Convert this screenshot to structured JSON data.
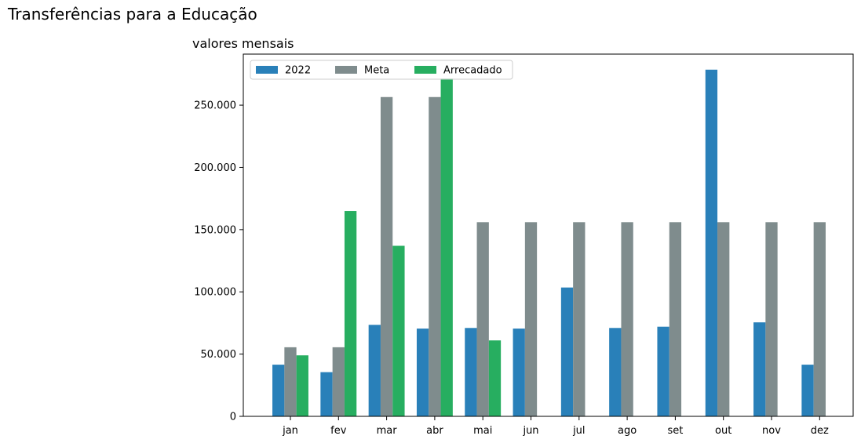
{
  "figure": {
    "suptitle": "Transferências para a Educação",
    "subtitle": "valores mensais"
  },
  "chart_data": {
    "type": "bar",
    "title": "valores mensais",
    "xlabel": "",
    "ylabel": "",
    "categories": [
      "jan",
      "fev",
      "mar",
      "abr",
      "mai",
      "jun",
      "jul",
      "ago",
      "set",
      "out",
      "nov",
      "dez"
    ],
    "series": [
      {
        "name": "2022",
        "color": "#2980b9",
        "values": [
          41500,
          35500,
          73500,
          70500,
          71000,
          70500,
          103500,
          71000,
          72000,
          278500,
          75500,
          41500
        ]
      },
      {
        "name": "Meta",
        "color": "#7f8c8d",
        "values": [
          55500,
          55500,
          256500,
          256500,
          156000,
          156000,
          156000,
          156000,
          156000,
          156000,
          156000,
          156000
        ]
      },
      {
        "name": "Arrecadado",
        "color": "#27ae60",
        "values": [
          49000,
          165000,
          137000,
          271500,
          61000,
          null,
          null,
          null,
          null,
          null,
          null,
          null
        ]
      }
    ],
    "ylim": [
      0,
      291000
    ],
    "yticks": [
      0,
      50000,
      100000,
      150000,
      200000,
      250000
    ],
    "ytick_labels": [
      "0",
      "50.000",
      "100.000",
      "150.000",
      "200.000",
      "250.000"
    ],
    "legend": {
      "position": "upper-left",
      "ncol": 3
    },
    "grid": false
  }
}
